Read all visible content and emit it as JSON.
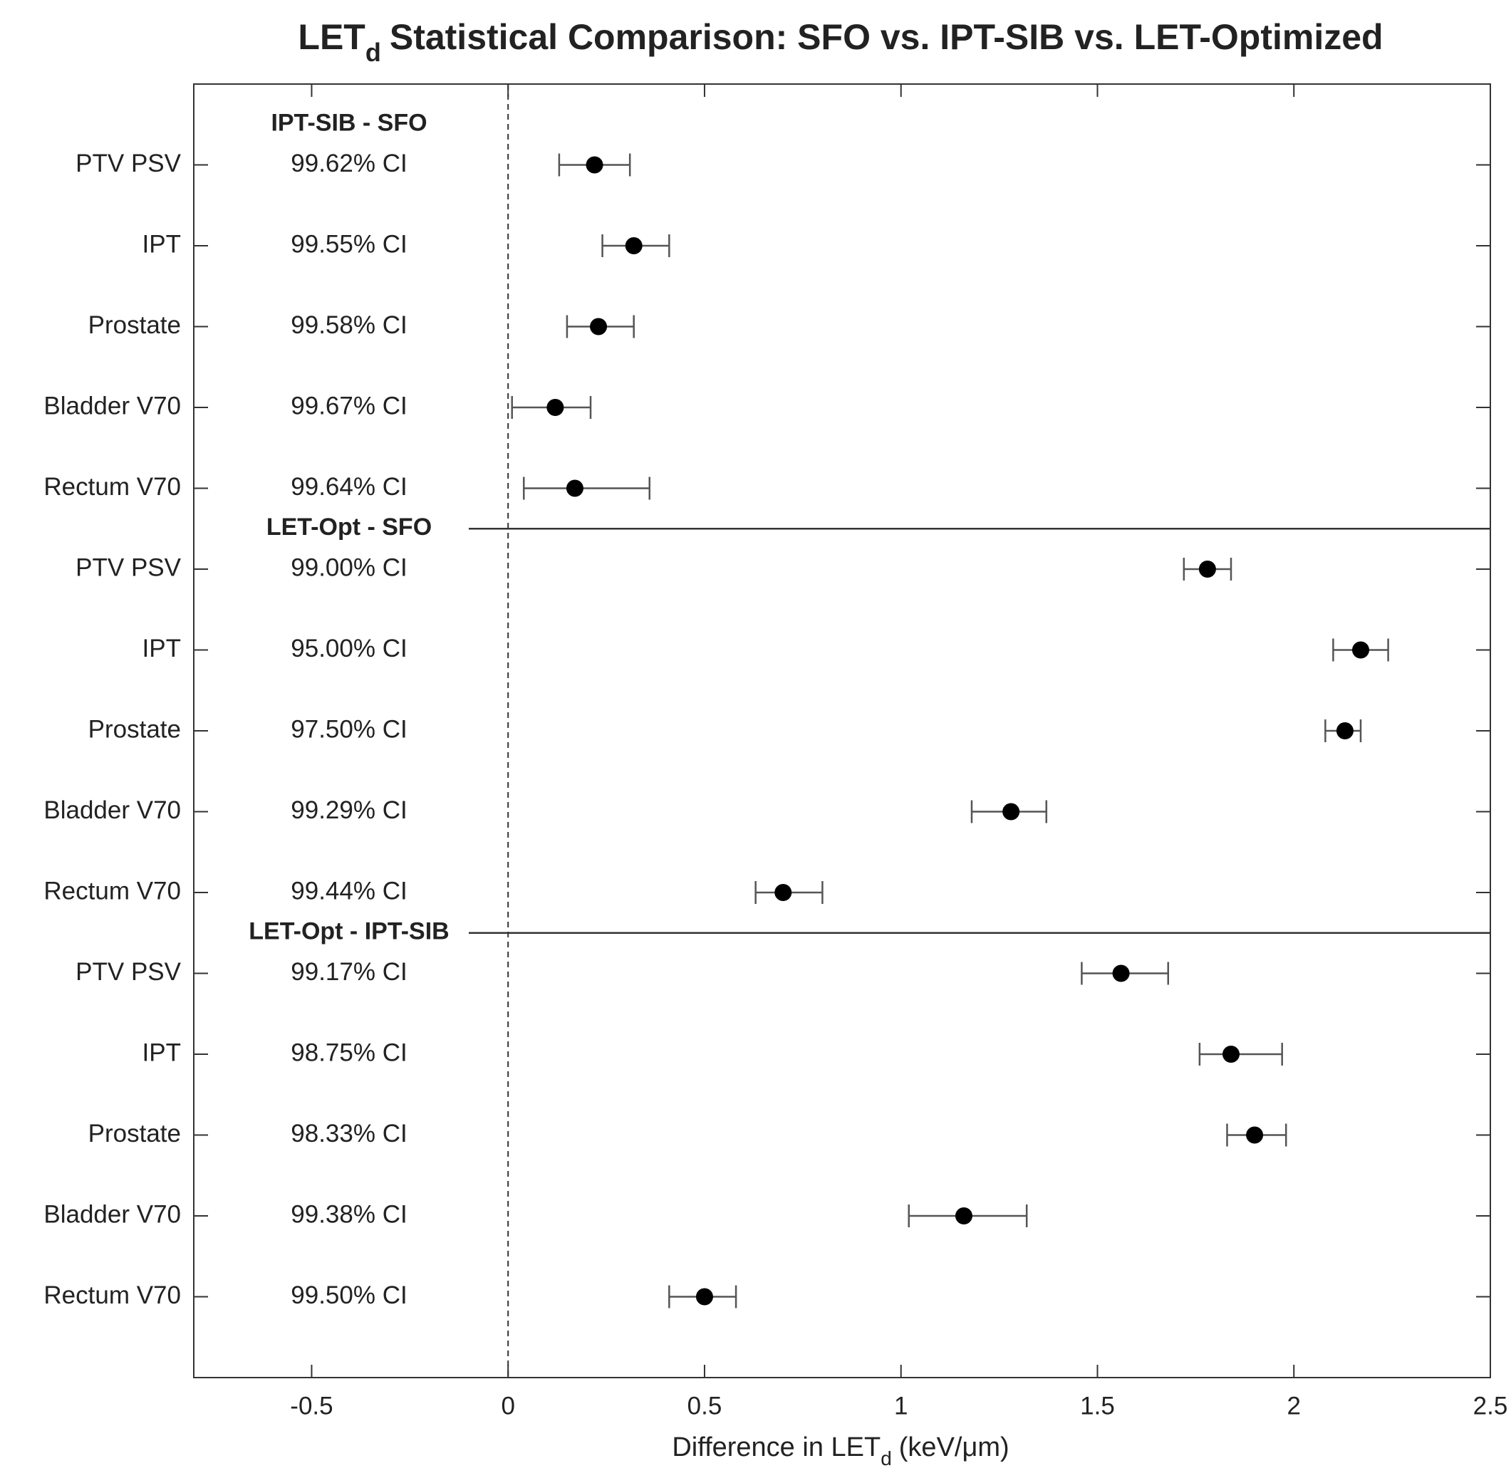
{
  "chart_data": {
    "type": "forest",
    "title": [
      "LET",
      "d",
      "Statistical Comparison: SFO vs. IPT-SIB vs. LET-Optimized"
    ],
    "x_label": [
      "Difference in LET",
      "d",
      "(keV/μm)"
    ],
    "groups": [
      "IPT-SIB - SFO",
      "LET-Opt - SFO",
      "LET-Opt - IPT-SIB"
    ],
    "categories": [
      "PTV PSV",
      "IPT",
      "Prostate",
      "Bladder V70",
      "Rectum V70",
      "PTV PSV",
      "IPT",
      "Prostate",
      "Bladder V70",
      "Rectum V70",
      "PTV PSV",
      "IPT",
      "Prostate",
      "Bladder V70",
      "Rectum V70"
    ],
    "ci_labels": [
      "99.62% CI",
      "99.55% CI",
      "99.58% CI",
      "99.67% CI",
      "99.64% CI",
      "99.00% CI",
      "95.00% CI",
      "97.50% CI",
      "99.29% CI",
      "99.44% CI",
      "99.17% CI",
      "98.75% CI",
      "98.33% CI",
      "99.38% CI",
      "99.50% CI"
    ],
    "values": [
      0.22,
      0.32,
      0.23,
      0.12,
      0.17,
      1.78,
      2.17,
      2.13,
      1.28,
      0.7,
      1.56,
      1.84,
      1.9,
      1.16,
      0.5
    ],
    "lower": [
      0.13,
      0.24,
      0.15,
      0.01,
      0.04,
      1.72,
      2.1,
      2.08,
      1.18,
      0.63,
      1.46,
      1.76,
      1.83,
      1.02,
      0.41
    ],
    "upper": [
      0.31,
      0.41,
      0.32,
      0.21,
      0.36,
      1.84,
      2.24,
      2.17,
      1.37,
      0.8,
      1.68,
      1.97,
      1.98,
      1.32,
      0.58
    ],
    "color": "#000000",
    "error_color": "#555555",
    "xlim": [
      -0.8,
      2.5
    ],
    "xticks": [
      -0.5,
      0,
      0.5,
      1,
      1.5,
      2,
      2.5
    ]
  }
}
